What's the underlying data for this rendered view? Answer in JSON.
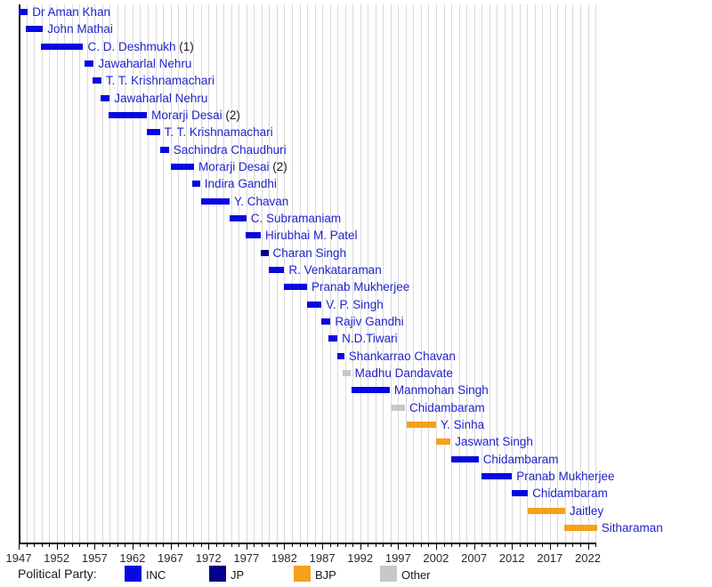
{
  "chart_data": {
    "type": "gantt",
    "description": "Timeline of Finance Ministers tenures colored by political party",
    "legend_title": "Political Party:",
    "x_axis": {
      "min": 1947,
      "max": 2023,
      "major_tick_years": [
        1947,
        1952,
        1957,
        1962,
        1967,
        1972,
        1977,
        1982,
        1987,
        1992,
        1997,
        2002,
        2007,
        2012,
        2017,
        2022
      ],
      "minor_tick_interval": 1,
      "grid": true,
      "grid_interval": 1
    },
    "party_colors": {
      "INC": "#0808e0",
      "JP": "#00008b",
      "BJP": "#f6a01d",
      "Other": "#c8c8c8"
    },
    "legend": [
      {
        "label": "INC",
        "party": "INC"
      },
      {
        "label": "JP",
        "party": "JP"
      },
      {
        "label": "BJP",
        "party": "BJP"
      },
      {
        "label": "Other",
        "party": "Other"
      }
    ],
    "rows": [
      {
        "name": "Dr Aman Khan",
        "suffix": "",
        "party": "INC",
        "start": 1947.0,
        "end": 1948.2
      },
      {
        "name": "John Mathai",
        "suffix": "",
        "party": "INC",
        "start": 1947.9,
        "end": 1950.2
      },
      {
        "name": "C. D. Deshmukh",
        "suffix": "(1)",
        "party": "INC",
        "start": 1949.9,
        "end": 1955.5
      },
      {
        "name": "Jawaharlal Nehru",
        "suffix": "",
        "party": "INC",
        "start": 1955.7,
        "end": 1956.9
      },
      {
        "name": "T. T. Krishnamachari",
        "suffix": "",
        "party": "INC",
        "start": 1956.7,
        "end": 1957.9
      },
      {
        "name": "Jawaharlal Nehru",
        "suffix": "",
        "party": "INC",
        "start": 1957.8,
        "end": 1959.0
      },
      {
        "name": "Morarji Desai",
        "suffix": "(2)",
        "party": "INC",
        "start": 1958.8,
        "end": 1963.9
      },
      {
        "name": "T. T. Krishnamachari",
        "suffix": "",
        "party": "INC",
        "start": 1963.9,
        "end": 1965.6
      },
      {
        "name": "Sachindra Chaudhuri",
        "suffix": "",
        "party": "INC",
        "start": 1965.6,
        "end": 1966.8
      },
      {
        "name": "Morarji Desai",
        "suffix": "(2)",
        "party": "INC",
        "start": 1967.0,
        "end": 1970.1
      },
      {
        "name": "Indira Gandhi",
        "suffix": "",
        "party": "INC",
        "start": 1969.9,
        "end": 1970.9
      },
      {
        "name": "Y. Chavan",
        "suffix": "",
        "party": "INC",
        "start": 1971.0,
        "end": 1974.8
      },
      {
        "name": "C. Subramaniam",
        "suffix": "",
        "party": "INC",
        "start": 1974.8,
        "end": 1977.0
      },
      {
        "name": "Hirubhai M. Patel",
        "suffix": "",
        "party": "INC",
        "start": 1976.9,
        "end": 1978.9
      },
      {
        "name": "Charan Singh",
        "suffix": "",
        "party": "JP",
        "start": 1978.9,
        "end": 1979.9
      },
      {
        "name": "R. Venkataraman",
        "suffix": "",
        "party": "INC",
        "start": 1980.0,
        "end": 1982.0
      },
      {
        "name": "Pranab Mukherjee",
        "suffix": "",
        "party": "INC",
        "start": 1982.0,
        "end": 1985.0
      },
      {
        "name": "V. P. Singh",
        "suffix": "",
        "party": "INC",
        "start": 1985.0,
        "end": 1986.9
      },
      {
        "name": "Rajiv Gandhi",
        "suffix": "",
        "party": "INC",
        "start": 1986.9,
        "end": 1988.1
      },
      {
        "name": "N.D.Tiwari",
        "suffix": "",
        "party": "INC",
        "start": 1987.8,
        "end": 1989.0
      },
      {
        "name": "Shankarrao Chavan",
        "suffix": "",
        "party": "INC",
        "start": 1989.0,
        "end": 1989.9
      },
      {
        "name": "Madhu Dandavate",
        "suffix": "",
        "party": "Other",
        "start": 1989.7,
        "end": 1990.7
      },
      {
        "name": "Manmohan Singh",
        "suffix": "",
        "party": "INC",
        "start": 1990.9,
        "end": 1995.9
      },
      {
        "name": "Chidambaram",
        "suffix": "",
        "party": "Other",
        "start": 1996.1,
        "end": 1997.9
      },
      {
        "name": "Y. Sinha",
        "suffix": "",
        "party": "BJP",
        "start": 1998.1,
        "end": 2002.0
      },
      {
        "name": "Jaswant Singh",
        "suffix": "",
        "party": "BJP",
        "start": 2002.0,
        "end": 2003.9
      },
      {
        "name": "Chidambaram",
        "suffix": "",
        "party": "INC",
        "start": 2004.0,
        "end": 2007.6
      },
      {
        "name": "Pranab Mukherjee",
        "suffix": "",
        "party": "INC",
        "start": 2008.0,
        "end": 2012.0
      },
      {
        "name": "Chidambaram",
        "suffix": "",
        "party": "INC",
        "start": 2012.0,
        "end": 2014.1
      },
      {
        "name": "Jaitley",
        "suffix": "",
        "party": "BJP",
        "start": 2014.1,
        "end": 2019.0
      },
      {
        "name": "Sitharaman",
        "suffix": "",
        "party": "BJP",
        "start": 2018.9,
        "end": 2023.2
      }
    ]
  },
  "colors": {
    "background": "#ffffff",
    "grid": "#d9d9d9",
    "axis": "#000000",
    "tick_label": "#2b2b2b",
    "name_label": "#2222cc",
    "suffix_label": "#1a1a1a",
    "legend_text": "#1a1a1a"
  }
}
